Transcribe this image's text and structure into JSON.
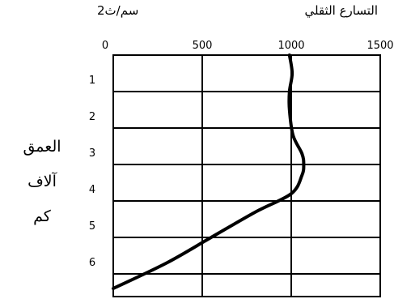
{
  "chart_data": {
    "type": "line",
    "title": "التسارع الثقلي",
    "unit": "سم/ث2",
    "ylabel_lines": [
      "العمق",
      "آلاف",
      "كم"
    ],
    "x_ticks": [
      "0",
      "500",
      "1000",
      "1500"
    ],
    "y_ticks": [
      "1",
      "2",
      "3",
      "4",
      "5",
      "6"
    ],
    "xlim": [
      0,
      1500
    ],
    "ylim": [
      0,
      6.4
    ],
    "grid": true,
    "series": [
      {
        "x": [
          990,
          1005,
          990,
          990,
          1010,
          1060,
          1070,
          1060,
          1000,
          800,
          550,
          300,
          0
        ],
        "y": [
          0,
          0.5,
          1.0,
          1.5,
          2.2,
          2.7,
          3.0,
          3.3,
          3.8,
          4.3,
          5.0,
          5.7,
          6.4
        ]
      }
    ],
    "color": "#000000"
  }
}
